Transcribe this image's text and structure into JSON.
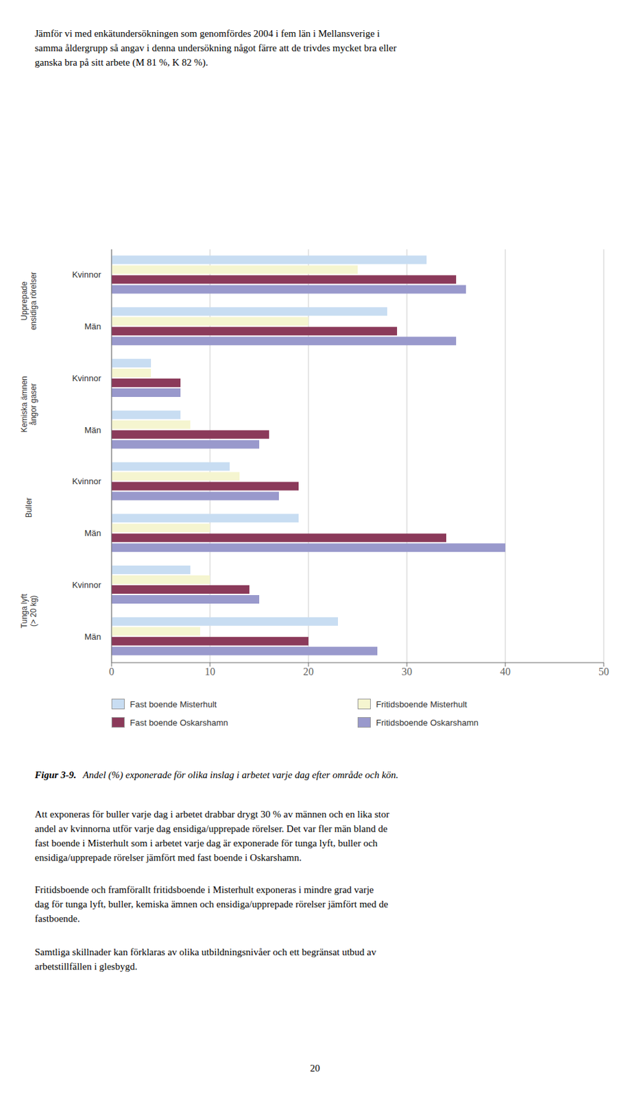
{
  "chart_data": {
    "type": "bar",
    "orientation": "horizontal",
    "categories": [
      "Upprepade\nensidiga rörelser",
      "Kemiska ämnen\nångor gaser",
      "Buller",
      "Tunga lyft\n(> 20 kg)"
    ],
    "groups": [
      "Kvinnor",
      "Män"
    ],
    "series": [
      {
        "name": "Fast boende Misterhult",
        "color": "#c8ddf2",
        "values": [
          [
            32,
            28
          ],
          [
            4,
            7
          ],
          [
            12,
            19
          ],
          [
            8,
            23
          ]
        ]
      },
      {
        "name": "Fritidsboende Misterhult",
        "color": "#f5f5d0",
        "values": [
          [
            25,
            20
          ],
          [
            4,
            8
          ],
          [
            13,
            10
          ],
          [
            10,
            9
          ]
        ]
      },
      {
        "name": "Fast boende Oskarshamn",
        "color": "#8b3a5a",
        "values": [
          [
            35,
            29
          ],
          [
            7,
            16
          ],
          [
            19,
            34
          ],
          [
            14,
            20
          ]
        ]
      },
      {
        "name": "Fritidsboende Oskarshamn",
        "color": "#9999cc",
        "values": [
          [
            36,
            35
          ],
          [
            7,
            15
          ],
          [
            17,
            40
          ],
          [
            15,
            27
          ]
        ]
      }
    ],
    "xlim": [
      0,
      50
    ],
    "xticks": [
      0,
      10,
      20,
      30,
      40,
      50
    ],
    "grid": true,
    "legend": "bottom"
  },
  "header_text": "Jämför vi med enkätundersökningen som genomfördes 2004 i fem län i Mellansverige i\nsamma åldergrupp så angav i denna undersökning något färre att de trivdes mycket bra eller\nganska bra på sitt arbete (M 81 %, K 82 %).",
  "caption_bold": "Figur 3-9.",
  "caption_italic": "Andel (%) exponerade för olika inslag i arbetet varje dag efter område och kön.",
  "body_text_1": "Att exponeras för buller varje dag i arbetet drabbar drygt 30 % av männen och en lika stor\nandel av kvinnorna utför varje dag ensidiga/upprepade rörelser. Det var fler män bland de\nfast boende i Misterhult som i arbetet varje dag är exponerade för tunga lyft, buller och\nensidiga/upprepade rörelser jämfört med fast boende i Oskarshamn.",
  "body_text_2": "Fritidsboende och framförallt fritidsboende i Misterhult exponeras i mindre grad varje\ndag för tunga lyft, buller, kemiska ämnen och ensidiga/upprepade rörelser jämfört med de\nfastboende.",
  "body_text_3": "Samtliga skillnader kan förklaras av olika utbildningsnivåer och ett begränsat utbud av\narbetstillfällen i glesbygd.",
  "page_number": "20"
}
